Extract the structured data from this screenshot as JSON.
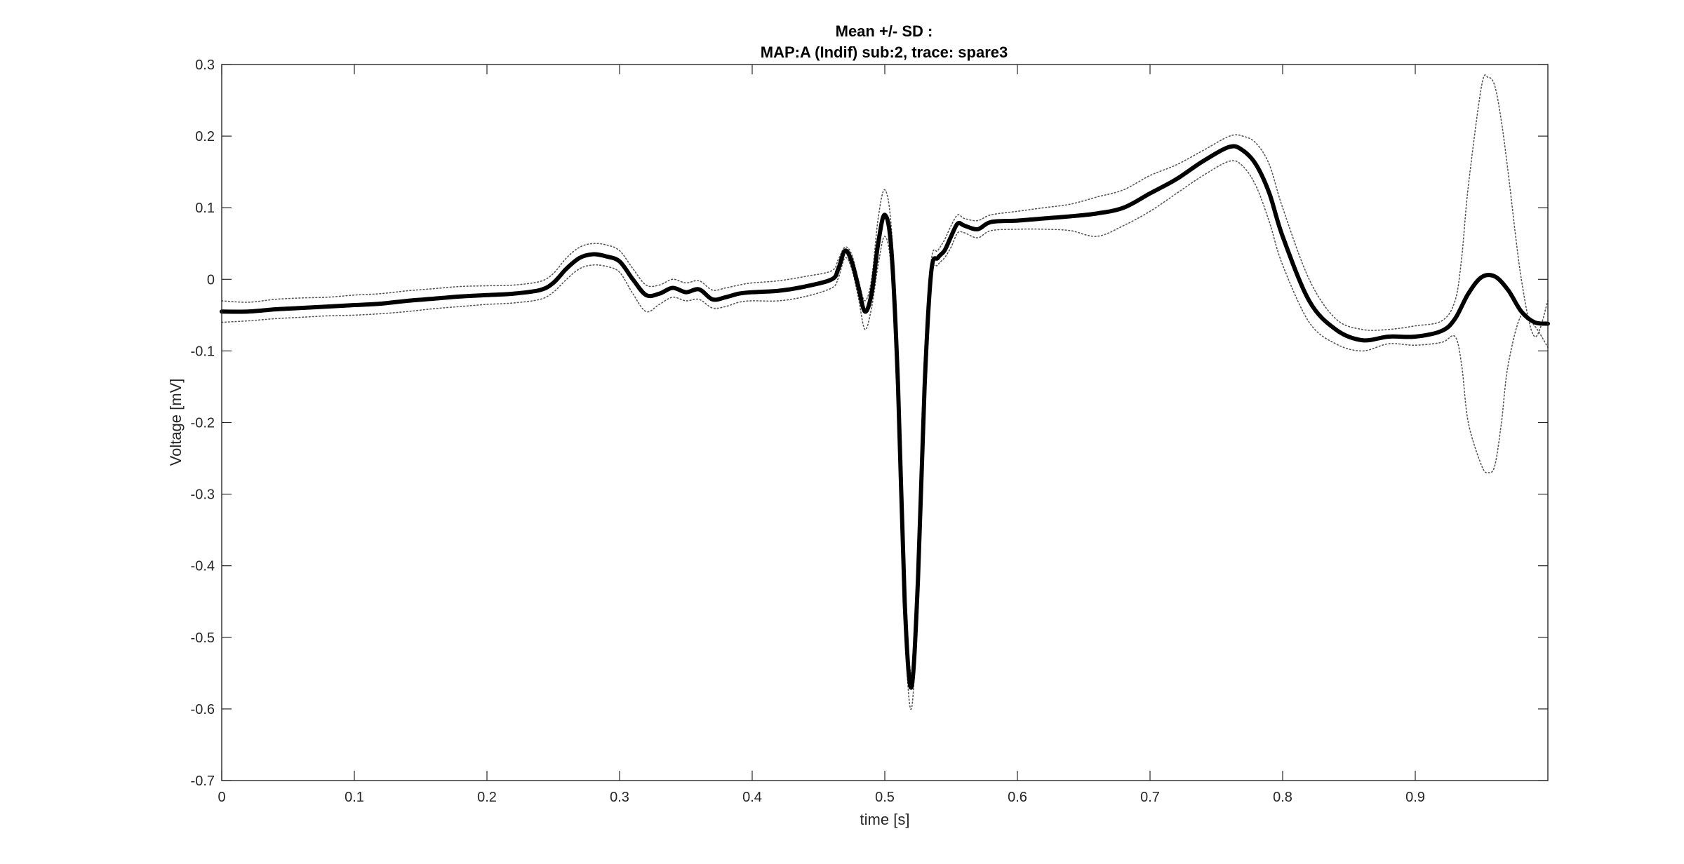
{
  "chart_data": {
    "type": "line",
    "title": "Mean +/- SD :",
    "subtitle": "MAP:A (Indif) sub:2, trace: spare3",
    "xlabel": "time [s]",
    "ylabel": "Voltage [mV]",
    "xlim": [
      0,
      1
    ],
    "ylim": [
      -0.7,
      0.3
    ],
    "xticks": [
      0,
      0.1,
      0.2,
      0.3,
      0.4,
      0.5,
      0.6,
      0.7,
      0.8,
      0.9
    ],
    "xtick_labels": [
      "0",
      "0.1",
      "0.2",
      "0.3",
      "0.4",
      "0.5",
      "0.6",
      "0.7",
      "0.8",
      "0.9"
    ],
    "yticks": [
      0.3,
      0.2,
      0.1,
      0,
      -0.1,
      -0.2,
      -0.3,
      -0.4,
      -0.5,
      -0.6,
      -0.7
    ],
    "ytick_labels": [
      "0.3",
      "0.2",
      "0.1",
      "0",
      "-0.1",
      "-0.2",
      "-0.3",
      "-0.4",
      "-0.5",
      "-0.6",
      "-0.7"
    ],
    "grid": false,
    "colors": {
      "mean": "#000000",
      "sd": "#555555",
      "axes": "#262626"
    },
    "series": [
      {
        "role": "mean",
        "style": "solid-thick",
        "x": [
          0,
          0.02,
          0.04,
          0.06,
          0.08,
          0.1,
          0.12,
          0.14,
          0.16,
          0.18,
          0.2,
          0.22,
          0.24,
          0.25,
          0.26,
          0.27,
          0.28,
          0.29,
          0.3,
          0.31,
          0.32,
          0.33,
          0.34,
          0.35,
          0.36,
          0.37,
          0.38,
          0.39,
          0.4,
          0.42,
          0.44,
          0.46,
          0.465,
          0.47,
          0.475,
          0.48,
          0.485,
          0.49,
          0.495,
          0.5,
          0.505,
          0.51,
          0.515,
          0.52,
          0.525,
          0.53,
          0.535,
          0.54,
          0.545,
          0.55,
          0.555,
          0.56,
          0.57,
          0.58,
          0.6,
          0.62,
          0.64,
          0.66,
          0.68,
          0.7,
          0.72,
          0.74,
          0.76,
          0.77,
          0.78,
          0.79,
          0.8,
          0.82,
          0.84,
          0.86,
          0.88,
          0.9,
          0.92,
          0.93,
          0.94,
          0.95,
          0.96,
          0.97,
          0.98,
          0.99,
          1.0
        ],
        "values": [
          -0.045,
          -0.045,
          -0.042,
          -0.04,
          -0.038,
          -0.036,
          -0.034,
          -0.03,
          -0.027,
          -0.024,
          -0.022,
          -0.02,
          -0.015,
          -0.005,
          0.015,
          0.03,
          0.035,
          0.032,
          0.025,
          0.0,
          -0.022,
          -0.02,
          -0.012,
          -0.018,
          -0.014,
          -0.028,
          -0.025,
          -0.02,
          -0.018,
          -0.016,
          -0.01,
          0.0,
          0.015,
          0.04,
          0.025,
          -0.01,
          -0.045,
          -0.02,
          0.05,
          0.09,
          0.04,
          -0.15,
          -0.45,
          -0.57,
          -0.42,
          -0.15,
          0.01,
          0.03,
          0.04,
          0.06,
          0.078,
          0.075,
          0.07,
          0.08,
          0.082,
          0.085,
          0.088,
          0.092,
          0.1,
          0.12,
          0.14,
          0.165,
          0.185,
          0.18,
          0.16,
          0.12,
          0.06,
          -0.03,
          -0.07,
          -0.085,
          -0.08,
          -0.08,
          -0.072,
          -0.055,
          -0.02,
          0.003,
          0.004,
          -0.015,
          -0.045,
          -0.06,
          -0.062
        ]
      },
      {
        "role": "mean+sd",
        "style": "dotted",
        "x": [
          0,
          0.02,
          0.04,
          0.06,
          0.08,
          0.1,
          0.12,
          0.14,
          0.16,
          0.18,
          0.2,
          0.22,
          0.24,
          0.25,
          0.26,
          0.27,
          0.28,
          0.29,
          0.3,
          0.31,
          0.32,
          0.33,
          0.34,
          0.35,
          0.36,
          0.37,
          0.38,
          0.39,
          0.4,
          0.42,
          0.44,
          0.46,
          0.465,
          0.47,
          0.475,
          0.48,
          0.485,
          0.49,
          0.495,
          0.5,
          0.505,
          0.51,
          0.515,
          0.52,
          0.525,
          0.53,
          0.535,
          0.54,
          0.545,
          0.55,
          0.555,
          0.56,
          0.57,
          0.58,
          0.6,
          0.62,
          0.64,
          0.66,
          0.68,
          0.7,
          0.72,
          0.74,
          0.76,
          0.77,
          0.78,
          0.79,
          0.8,
          0.82,
          0.84,
          0.86,
          0.88,
          0.9,
          0.92,
          0.93,
          0.935,
          0.94,
          0.95,
          0.955,
          0.96,
          0.965,
          0.97,
          0.98,
          0.99,
          1.0
        ],
        "values": [
          -0.03,
          -0.032,
          -0.028,
          -0.026,
          -0.025,
          -0.022,
          -0.02,
          -0.016,
          -0.013,
          -0.01,
          -0.009,
          -0.008,
          -0.003,
          0.008,
          0.03,
          0.045,
          0.05,
          0.048,
          0.04,
          0.015,
          -0.008,
          -0.008,
          0.0,
          -0.005,
          -0.002,
          -0.015,
          -0.012,
          -0.008,
          -0.005,
          -0.002,
          0.004,
          0.012,
          0.028,
          0.045,
          0.035,
          0.0,
          -0.03,
          0.0,
          0.085,
          0.125,
          0.07,
          -0.12,
          -0.42,
          -0.55,
          -0.4,
          -0.13,
          0.025,
          0.04,
          0.055,
          0.075,
          0.09,
          0.085,
          0.082,
          0.09,
          0.095,
          0.1,
          0.105,
          0.115,
          0.125,
          0.145,
          0.16,
          0.18,
          0.2,
          0.2,
          0.19,
          0.16,
          0.1,
          0.0,
          -0.055,
          -0.07,
          -0.07,
          -0.065,
          -0.058,
          -0.03,
          0.03,
          0.13,
          0.27,
          0.282,
          0.27,
          0.22,
          0.15,
          0.0,
          -0.08,
          -0.03
        ]
      },
      {
        "role": "mean-sd",
        "style": "dotted",
        "x": [
          0,
          0.02,
          0.04,
          0.06,
          0.08,
          0.1,
          0.12,
          0.14,
          0.16,
          0.18,
          0.2,
          0.22,
          0.24,
          0.25,
          0.26,
          0.27,
          0.28,
          0.29,
          0.3,
          0.31,
          0.32,
          0.33,
          0.34,
          0.35,
          0.36,
          0.37,
          0.38,
          0.39,
          0.4,
          0.42,
          0.44,
          0.46,
          0.465,
          0.47,
          0.475,
          0.48,
          0.485,
          0.49,
          0.495,
          0.5,
          0.505,
          0.51,
          0.515,
          0.52,
          0.525,
          0.53,
          0.535,
          0.54,
          0.545,
          0.55,
          0.555,
          0.56,
          0.57,
          0.58,
          0.6,
          0.62,
          0.64,
          0.66,
          0.68,
          0.7,
          0.72,
          0.74,
          0.76,
          0.77,
          0.78,
          0.79,
          0.8,
          0.82,
          0.84,
          0.86,
          0.88,
          0.9,
          0.92,
          0.93,
          0.935,
          0.94,
          0.95,
          0.955,
          0.96,
          0.965,
          0.97,
          0.98,
          0.99,
          1.0
        ],
        "values": [
          -0.06,
          -0.058,
          -0.055,
          -0.053,
          -0.051,
          -0.05,
          -0.048,
          -0.045,
          -0.041,
          -0.038,
          -0.035,
          -0.033,
          -0.028,
          -0.018,
          0.0,
          0.015,
          0.02,
          0.018,
          0.01,
          -0.02,
          -0.045,
          -0.035,
          -0.025,
          -0.03,
          -0.028,
          -0.04,
          -0.038,
          -0.032,
          -0.03,
          -0.03,
          -0.024,
          -0.012,
          0.002,
          0.03,
          0.015,
          -0.025,
          -0.07,
          -0.04,
          0.02,
          0.06,
          0.01,
          -0.18,
          -0.48,
          -0.6,
          -0.44,
          -0.17,
          0.0,
          0.02,
          0.03,
          0.045,
          0.065,
          0.065,
          0.058,
          0.068,
          0.07,
          0.07,
          0.068,
          0.06,
          0.075,
          0.095,
          0.12,
          0.145,
          0.165,
          0.158,
          0.13,
          0.08,
          0.02,
          -0.06,
          -0.09,
          -0.1,
          -0.09,
          -0.092,
          -0.088,
          -0.08,
          -0.12,
          -0.2,
          -0.26,
          -0.27,
          -0.26,
          -0.2,
          -0.12,
          -0.05,
          -0.065,
          -0.095
        ]
      }
    ]
  }
}
